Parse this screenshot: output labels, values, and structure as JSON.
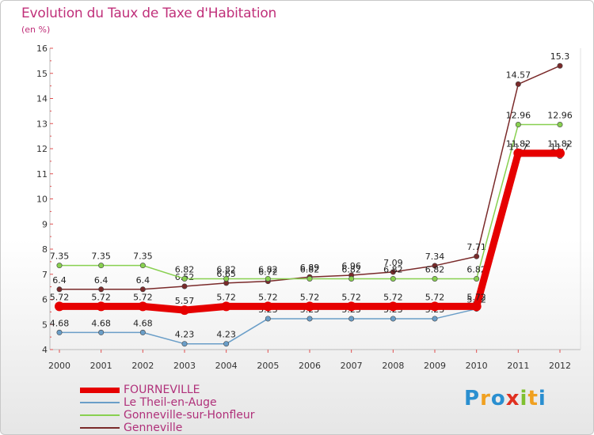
{
  "chart_data": {
    "type": "line",
    "title": "Evolution du Taux de Taxe d'Habitation",
    "ylabel": "(en %)",
    "xlabel": "",
    "ylim": [
      4,
      16
    ],
    "yticks": [
      4,
      5,
      6,
      7,
      8,
      9,
      10,
      11,
      12,
      13,
      14,
      15,
      16
    ],
    "categories": [
      "2000",
      "2001",
      "2002",
      "2003",
      "2004",
      "2005",
      "2006",
      "2007",
      "2008",
      "2009",
      "2010",
      "2011",
      "2012"
    ],
    "series": [
      {
        "name": "FOURNEVILLE",
        "color": "#e60000",
        "values": [
          5.72,
          5.72,
          5.72,
          5.57,
          5.72,
          5.72,
          5.72,
          5.72,
          5.72,
          5.72,
          5.72,
          11.82,
          11.82
        ],
        "labels": [
          "5.72",
          "5.72",
          "5.72",
          "5.57",
          "5.72",
          "5.72",
          "5.72",
          "5.72",
          "5.72",
          "5.72",
          "5.72",
          "11.82",
          "11.82"
        ]
      },
      {
        "name": "Le Theil-en-Auge",
        "color": "#6a9ec8",
        "values": [
          4.68,
          4.68,
          4.68,
          4.23,
          4.23,
          5.23,
          5.23,
          5.23,
          5.23,
          5.23,
          5.62,
          11.7,
          11.7
        ],
        "labels": [
          "4.68",
          "4.68",
          "4.68",
          "4.23",
          "4.23",
          "5.23",
          "5.23",
          "5.23",
          "5.23",
          "5.23",
          "5.62",
          "11.7",
          "11.7"
        ]
      },
      {
        "name": "Gonneville-sur-Honfleur",
        "color": "#88d050",
        "values": [
          7.35,
          7.35,
          7.35,
          6.82,
          6.82,
          6.82,
          6.82,
          6.82,
          6.82,
          6.82,
          6.82,
          12.96,
          12.96
        ],
        "labels": [
          "7.35",
          "7.35",
          "7.35",
          "6.82",
          "6.82",
          "6.82",
          "6.82",
          "6.82",
          "6.82",
          "6.82",
          "6.82",
          "12.96",
          "12.96"
        ]
      },
      {
        "name": "Genneville",
        "color": "#7a2a2a",
        "values": [
          6.4,
          6.4,
          6.4,
          6.52,
          6.65,
          6.72,
          6.89,
          6.96,
          7.09,
          7.34,
          7.71,
          14.57,
          15.3
        ],
        "labels": [
          "6.4",
          "6.4",
          "6.4",
          "6.52",
          "6.65",
          "6.72",
          "6.89",
          "6.96",
          "7.09",
          "7.34",
          "7.71",
          "14.57",
          "15.3"
        ]
      }
    ]
  },
  "legend": {
    "items": [
      {
        "name": "FOURNEVILLE",
        "color": "#e60000"
      },
      {
        "name": "Le Theil-en-Auge",
        "color": "#6a9ec8"
      },
      {
        "name": "Gonneville-sur-Honfleur",
        "color": "#88d050"
      },
      {
        "name": "Genneville",
        "color": "#7a2a2a"
      }
    ]
  },
  "brand": {
    "letters": [
      "P",
      "r",
      "o",
      "x",
      "i",
      "t",
      "i"
    ],
    "colors": [
      "#2a8fd0",
      "#f0a020",
      "#2a8fd0",
      "#e03020",
      "#80c030",
      "#f0a020",
      "#2a8fd0"
    ]
  }
}
